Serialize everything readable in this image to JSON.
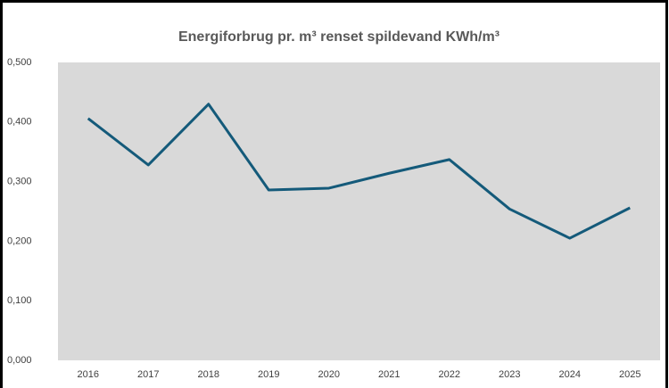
{
  "chart_data": {
    "type": "line",
    "title": "Energiforbrug pr. m³ renset spildevand KWh/m³",
    "categories": [
      "2016",
      "2017",
      "2018",
      "2019",
      "2020",
      "2021",
      "2022",
      "2023",
      "2024",
      "2025"
    ],
    "series": [
      {
        "name": "Energiforbrug",
        "color": "#145a7a",
        "values": [
          0.406,
          0.328,
          0.43,
          0.286,
          0.289,
          0.314,
          0.337,
          0.254,
          0.205,
          0.256
        ]
      }
    ],
    "ylim": [
      0,
      0.5
    ],
    "yticks": [
      {
        "value": 0,
        "label": "0,000"
      },
      {
        "value": 0.1,
        "label": "0,100"
      },
      {
        "value": 0.2,
        "label": "0,200"
      },
      {
        "value": 0.3,
        "label": "0,300"
      },
      {
        "value": 0.4,
        "label": "0,400"
      },
      {
        "value": 0.5,
        "label": "0,500"
      }
    ],
    "grid": false
  }
}
